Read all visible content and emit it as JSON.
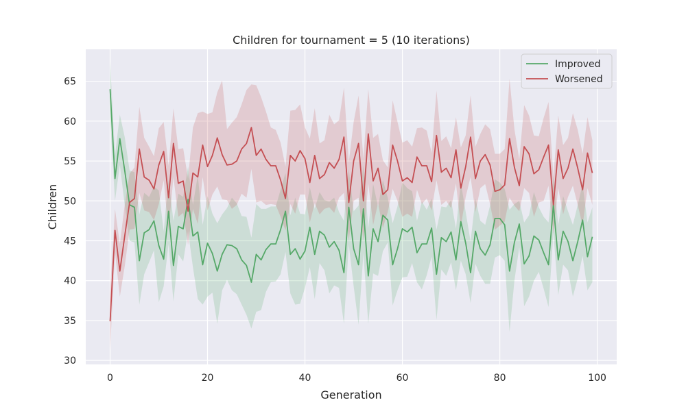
{
  "chart_data": {
    "type": "line",
    "title": "Children for tournament = 5 (10 iterations)",
    "xlabel": "Generation",
    "ylabel": "Children",
    "xlim": [
      -5,
      104
    ],
    "ylim": [
      29.5,
      69
    ],
    "xticks": [
      0,
      20,
      40,
      60,
      80,
      100
    ],
    "yticks": [
      30,
      35,
      40,
      45,
      50,
      55,
      60,
      65
    ],
    "grid": true,
    "legend_position": "upper right",
    "x": [
      0,
      1,
      2,
      3,
      4,
      5,
      6,
      7,
      8,
      9,
      10,
      11,
      12,
      13,
      14,
      15,
      16,
      17,
      18,
      19,
      20,
      21,
      22,
      23,
      24,
      25,
      26,
      27,
      28,
      29,
      30,
      31,
      32,
      33,
      34,
      35,
      36,
      37,
      38,
      39,
      40,
      41,
      42,
      43,
      44,
      45,
      46,
      47,
      48,
      49,
      50,
      51,
      52,
      53,
      54,
      55,
      56,
      57,
      58,
      59,
      60,
      61,
      62,
      63,
      64,
      65,
      66,
      67,
      68,
      69,
      70,
      71,
      72,
      73,
      74,
      75,
      76,
      77,
      78,
      79,
      80,
      81,
      82,
      83,
      84,
      85,
      86,
      87,
      88,
      89,
      90,
      91,
      92,
      93,
      94,
      95,
      96,
      97,
      98,
      99
    ],
    "series": [
      {
        "name": "Improved",
        "color": "#55a868",
        "values": [
          64.0,
          52.8,
          57.8,
          53.8,
          49.5,
          49.2,
          42.5,
          46.0,
          46.4,
          47.5,
          44.4,
          42.7,
          48.7,
          41.9,
          46.8,
          46.5,
          50.2,
          45.6,
          46.1,
          42.0,
          44.7,
          43.4,
          41.2,
          43.3,
          44.5,
          44.4,
          44.0,
          42.6,
          41.9,
          39.8,
          43.3,
          42.6,
          43.9,
          44.6,
          44.6,
          46.4,
          48.7,
          43.3,
          44.0,
          42.7,
          43.7,
          46.7,
          43.3,
          46.2,
          45.7,
          44.2,
          44.9,
          43.8,
          41.0,
          49.2,
          44.0,
          42.0,
          49.0,
          40.6,
          46.5,
          44.9,
          48.2,
          47.6,
          42.0,
          44.0,
          46.5,
          46.1,
          46.7,
          43.5,
          44.6,
          44.6,
          46.6,
          40.8,
          45.4,
          44.9,
          46.1,
          42.6,
          47.4,
          44.7,
          41.0,
          46.2,
          44.0,
          43.2,
          44.5,
          47.8,
          47.8,
          47.0,
          41.2,
          44.8,
          47.1,
          42.1,
          43.1,
          45.6,
          45.1,
          43.5,
          42.0,
          49.5,
          42.6,
          46.2,
          44.9,
          42.5,
          44.9,
          47.6,
          43.0,
          45.5
        ],
        "ci_lower": [
          60.5,
          50.0,
          54.5,
          49.5,
          45.0,
          44.8,
          37.0,
          40.8,
          42.3,
          43.8,
          37.3,
          39.3,
          44.6,
          37.4,
          43.3,
          42.4,
          46.2,
          41.7,
          37.7,
          37.0,
          38.0,
          38.5,
          34.6,
          38.8,
          40.1,
          38.8,
          38.3,
          37.0,
          35.7,
          34.0,
          36.1,
          36.3,
          38.6,
          39.8,
          39.9,
          40.8,
          43.6,
          38.4,
          37.0,
          37.1,
          39.1,
          41.7,
          37.7,
          42.2,
          41.3,
          38.4,
          39.4,
          39.1,
          34.6,
          44.5,
          39.3,
          34.5,
          43.4,
          34.6,
          40.9,
          40.6,
          43.7,
          44.8,
          36.9,
          38.8,
          40.4,
          40.5,
          42.2,
          39.8,
          38.9,
          40.7,
          43.0,
          35.1,
          41.4,
          40.6,
          42.3,
          38.8,
          42.5,
          40.8,
          37.2,
          42.1,
          40.6,
          39.6,
          39.6,
          42.9,
          43.2,
          42.5,
          33.6,
          40.0,
          44.2,
          36.8,
          38.0,
          40.0,
          41.1,
          39.0,
          36.7,
          46.0,
          38.2,
          42.0,
          41.3,
          38.0,
          40.3,
          43.1,
          38.8,
          39.8
        ],
        "ci_upper": [
          67.5,
          55.7,
          60.8,
          58.0,
          53.8,
          53.6,
          48.3,
          51.0,
          50.5,
          51.8,
          51.3,
          46.2,
          52.7,
          47.5,
          50.9,
          50.5,
          54.3,
          49.5,
          53.2,
          47.0,
          50.6,
          48.4,
          47.2,
          48.3,
          49.1,
          50.4,
          49.7,
          48.1,
          48.0,
          45.4,
          49.6,
          49.0,
          49.0,
          49.3,
          49.3,
          51.4,
          53.5,
          48.2,
          50.4,
          48.4,
          48.3,
          51.7,
          49.0,
          51.1,
          50.1,
          49.9,
          50.4,
          48.6,
          47.5,
          54.0,
          48.7,
          49.4,
          54.5,
          46.6,
          52.1,
          49.3,
          52.6,
          50.4,
          47.2,
          49.3,
          52.3,
          51.6,
          51.2,
          47.5,
          49.9,
          48.9,
          50.3,
          46.4,
          49.3,
          49.2,
          50.1,
          46.5,
          52.3,
          48.6,
          44.9,
          50.3,
          47.5,
          47.0,
          49.4,
          52.7,
          52.3,
          51.5,
          48.9,
          49.6,
          50.0,
          47.3,
          48.2,
          51.1,
          49.2,
          48.0,
          47.3,
          53.1,
          47.0,
          50.6,
          48.7,
          47.0,
          49.5,
          52.1,
          47.3,
          49.2
        ]
      },
      {
        "name": "Worsened",
        "color": "#c44e52",
        "values": [
          34.9,
          46.3,
          41.2,
          45.6,
          49.8,
          50.3,
          56.5,
          53.0,
          52.6,
          51.5,
          54.5,
          56.2,
          50.4,
          57.2,
          52.2,
          52.5,
          48.7,
          53.5,
          53.0,
          57.0,
          54.3,
          55.7,
          57.9,
          55.8,
          54.5,
          54.6,
          55.0,
          56.5,
          57.2,
          59.2,
          55.7,
          56.5,
          55.2,
          54.4,
          54.4,
          52.6,
          50.3,
          55.7,
          55.0,
          56.3,
          55.3,
          52.3,
          55.7,
          52.8,
          53.3,
          54.8,
          54.1,
          55.2,
          58.0,
          49.8,
          55.0,
          57.2,
          50.0,
          58.4,
          52.5,
          54.1,
          50.8,
          51.4,
          57.0,
          55.0,
          52.5,
          52.9,
          52.3,
          55.5,
          54.4,
          54.4,
          52.4,
          58.2,
          53.6,
          54.1,
          52.9,
          56.4,
          51.6,
          54.3,
          58.0,
          52.8,
          55.0,
          55.8,
          54.5,
          51.2,
          51.4,
          52.0,
          57.8,
          54.2,
          51.9,
          56.8,
          55.9,
          53.4,
          53.9,
          55.5,
          57.0,
          49.5,
          56.4,
          52.8,
          54.1,
          56.5,
          54.1,
          51.4,
          56.0,
          53.5
        ],
        "ci_lower": [
          31.3,
          43.6,
          38.0,
          41.8,
          46.4,
          46.5,
          51.0,
          48.8,
          48.6,
          47.6,
          49.6,
          52.6,
          46.2,
          53.0,
          48.0,
          48.5,
          44.5,
          49.0,
          47.1,
          53.0,
          48.8,
          50.8,
          51.8,
          50.2,
          50.1,
          49.0,
          49.5,
          50.9,
          50.4,
          54.0,
          49.8,
          50.0,
          49.5,
          49.6,
          49.5,
          48.0,
          46.3,
          49.6,
          48.4,
          50.8,
          50.8,
          47.3,
          49.7,
          48.3,
          49.0,
          49.2,
          48.5,
          50.4,
          51.0,
          45.0,
          50.0,
          50.4,
          45.0,
          52.2,
          47.0,
          49.7,
          46.6,
          48.6,
          51.5,
          50.0,
          48.0,
          48.4,
          48.0,
          51.4,
          49.6,
          50.3,
          48.8,
          52.6,
          49.5,
          50.0,
          49.1,
          52.2,
          46.8,
          50.5,
          53.0,
          48.6,
          51.6,
          52.1,
          49.6,
          46.4,
          46.9,
          47.4,
          50.4,
          49.4,
          48.7,
          51.6,
          51.0,
          48.0,
          49.8,
          50.0,
          51.9,
          45.9,
          51.6,
          48.3,
          50.5,
          51.9,
          49.5,
          46.9,
          51.6,
          49.5
        ],
        "ci_upper": [
          38.7,
          49.0,
          44.6,
          49.5,
          53.4,
          54.2,
          61.8,
          57.9,
          56.8,
          55.6,
          59.1,
          59.9,
          54.4,
          61.6,
          56.5,
          56.6,
          52.8,
          59.2,
          61.0,
          61.2,
          60.9,
          61.1,
          63.6,
          65.1,
          59.0,
          59.8,
          60.5,
          62.1,
          63.9,
          64.6,
          64.5,
          63.0,
          61.2,
          59.2,
          58.9,
          57.3,
          54.3,
          61.3,
          61.4,
          62.1,
          59.2,
          57.8,
          61.6,
          57.2,
          57.6,
          60.8,
          59.6,
          60.1,
          64.2,
          54.9,
          59.9,
          63.2,
          55.3,
          64.0,
          57.9,
          58.4,
          55.1,
          54.2,
          62.6,
          59.9,
          57.3,
          57.6,
          56.8,
          59.1,
          59.2,
          58.8,
          56.0,
          63.8,
          57.5,
          58.1,
          56.6,
          60.5,
          56.7,
          58.2,
          63.2,
          56.8,
          58.4,
          59.6,
          59.0,
          55.9,
          55.9,
          56.5,
          65.3,
          59.0,
          55.2,
          62.0,
          60.7,
          58.2,
          58.1,
          60.4,
          62.4,
          53.1,
          60.7,
          57.0,
          57.9,
          61.0,
          58.9,
          55.9,
          60.5,
          57.6
        ]
      }
    ]
  }
}
